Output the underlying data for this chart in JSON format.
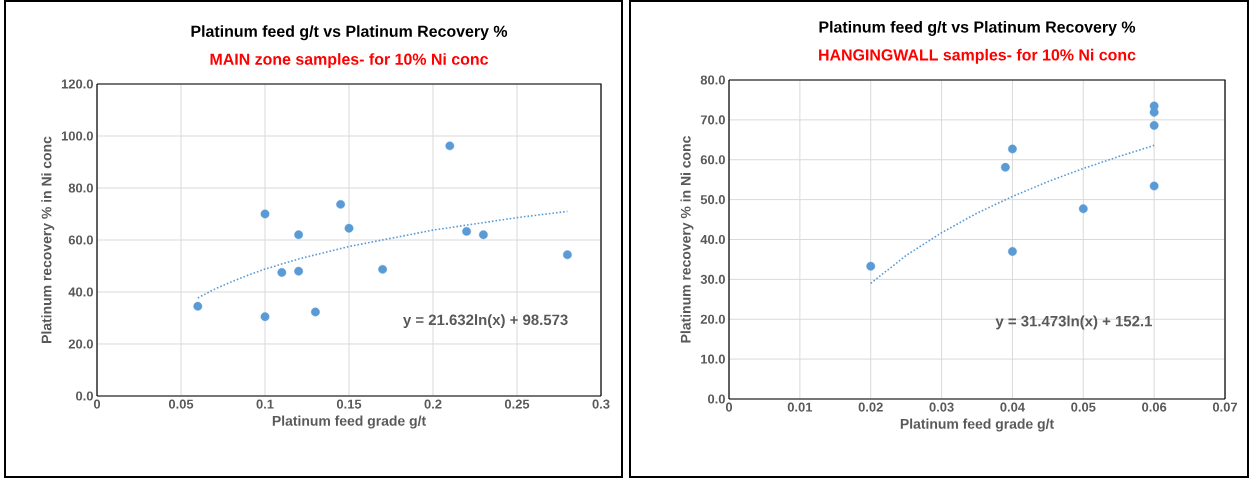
{
  "chart_data": [
    {
      "type": "scatter",
      "title": "Platinum feed g/t vs Platinum Recovery %",
      "subtitle": "MAIN zone samples- for 10% Ni conc",
      "xlabel": "Platinum feed grade g/t",
      "ylabel": "Platinum recovery % in Ni conc",
      "annotations": [
        "y = 21.632ln(x) + 98.573"
      ],
      "xlim": [
        0,
        0.3
      ],
      "ylim": [
        0,
        120
      ],
      "xticks": [
        0,
        0.05,
        0.1,
        0.15,
        0.2,
        0.25,
        0.3
      ],
      "yticks": [
        {
          "value": 0,
          "label": "0.0"
        },
        {
          "value": 20,
          "label": "20.0"
        },
        {
          "value": 40,
          "label": "40.0"
        },
        {
          "value": 60,
          "label": "60.0"
        },
        {
          "value": 80,
          "label": "80.0"
        },
        {
          "value": 100,
          "label": "100.0"
        },
        {
          "value": 120,
          "label": "120.0"
        }
      ],
      "grid": true,
      "marker": "circle",
      "series": [
        {
          "type": "scatter",
          "color": "#5b9bd5",
          "x": [
            0.06,
            0.1,
            0.1,
            0.11,
            0.12,
            0.12,
            0.13,
            0.145,
            0.15,
            0.17,
            0.21,
            0.22,
            0.23,
            0.28
          ],
          "values": [
            34.5,
            70,
            30.5,
            47.5,
            62,
            48,
            32.3,
            73.7,
            64.5,
            48.7,
            96.2,
            63.3,
            62,
            54.3
          ]
        },
        {
          "type": "line",
          "color": "#5b9bd5",
          "line_style": "dotted",
          "marker": "none",
          "x": [
            0.06,
            0.07,
            0.08,
            0.09,
            0.1,
            0.12,
            0.15,
            0.2,
            0.25,
            0.28
          ],
          "values": [
            37.7,
            41.1,
            43.9,
            46.5,
            48.8,
            52.7,
            57.5,
            63.8,
            68.6,
            71.0
          ]
        }
      ]
    },
    {
      "type": "scatter",
      "title": "Platinum feed g/t vs Platinum Recovery %",
      "subtitle": "HANGINGWALL samples- for 10% Ni conc",
      "xlabel": "Platinum feed grade g/t",
      "ylabel": "Platinum recovery % in Ni conc",
      "annotations": [
        "y = 31.473ln(x) + 152.1"
      ],
      "xlim": [
        0,
        0.07
      ],
      "ylim": [
        0,
        80
      ],
      "xticks": [
        0,
        0.01,
        0.02,
        0.03,
        0.04,
        0.05,
        0.06,
        0.07
      ],
      "yticks": [
        {
          "value": 0,
          "label": "0.0"
        },
        {
          "value": 10,
          "label": "10.0"
        },
        {
          "value": 20,
          "label": "20.0"
        },
        {
          "value": 30,
          "label": "30.0"
        },
        {
          "value": 40,
          "label": "40.0"
        },
        {
          "value": 50,
          "label": "50.0"
        },
        {
          "value": 60,
          "label": "60.0"
        },
        {
          "value": 70,
          "label": "70.0"
        },
        {
          "value": 80,
          "label": "80.0"
        }
      ],
      "grid": true,
      "marker": "circle",
      "series": [
        {
          "type": "scatter",
          "color": "#5b9bd5",
          "x": [
            0.02,
            0.039,
            0.04,
            0.04,
            0.05,
            0.06,
            0.06,
            0.06,
            0.06
          ],
          "values": [
            33.3,
            58.1,
            62.7,
            37,
            47.7,
            73.5,
            71.9,
            68.6,
            53.4
          ]
        },
        {
          "type": "line",
          "color": "#5b9bd5",
          "line_style": "dotted",
          "marker": "none",
          "x": [
            0.02,
            0.025,
            0.03,
            0.035,
            0.04,
            0.045,
            0.05,
            0.055,
            0.06
          ],
          "values": [
            29.0,
            36.0,
            41.7,
            46.6,
            50.8,
            54.5,
            57.8,
            60.8,
            63.6
          ]
        }
      ]
    }
  ]
}
